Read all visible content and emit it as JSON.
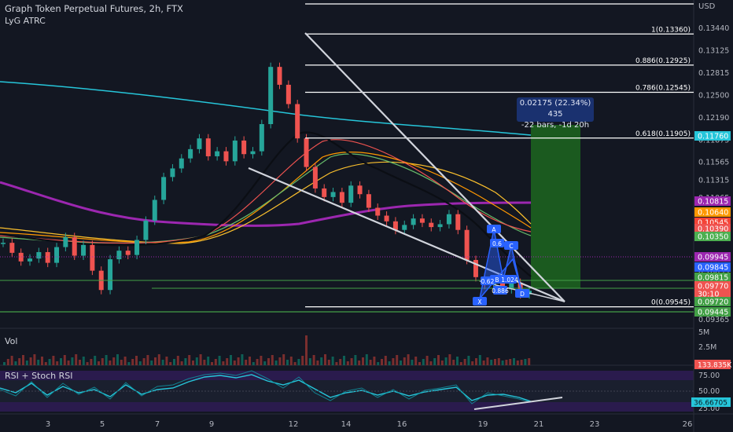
{
  "legend": {
    "title": "Graph Token Perpetual Futures, 2h, FTX",
    "indicator": "LyG ATRC"
  },
  "panes": {
    "volume_label": "Vol",
    "rsi_label": "RSI + Stoch RSI"
  },
  "currency": "USD",
  "measure_tooltip": {
    "line1": "0.02175 (22.34%) 435",
    "line2": "-22 bars, -1d 20h"
  },
  "colors": {
    "background": "#131722",
    "up": "#26a69a",
    "down": "#ef5350",
    "fib_line": "#ffffff",
    "target_box": "#1b5e20",
    "harmonic": "#2962ff",
    "rsi_band": "#2a1b4d",
    "rsi_line": "#26c6da"
  },
  "chart_data": {
    "type": "candlestick",
    "symbol": "Graph Token Perpetual Futures",
    "interval": "2h",
    "exchange": "FTX",
    "x_tick_labels": [
      "3",
      "5",
      "7",
      "9",
      "12",
      "14",
      "16",
      "19",
      "21",
      "23",
      "26"
    ],
    "price_axis_ticks": [
      "0.13440",
      "0.13125",
      "0.12815",
      "0.12500",
      "0.12190",
      "0.11875",
      "0.11565",
      "0.11315",
      "0.11065",
      "0.10035",
      "0.09365"
    ],
    "price_badges": [
      {
        "label": "0.11760",
        "color": "#26c6da"
      },
      {
        "label": "0.10815",
        "color": "#9c27b0"
      },
      {
        "label": "0.10640",
        "color": "#ff9800"
      },
      {
        "label": "0.10545",
        "color": "#f44336"
      },
      {
        "label": "0.10390",
        "color": "#ef5350"
      },
      {
        "label": "0.10350",
        "color": "#4caf50"
      },
      {
        "label": "0.09945",
        "color": "#9c27b0"
      },
      {
        "label": "0.09845",
        "color": "#2962ff"
      },
      {
        "label": "0.09815",
        "color": "#43a047"
      },
      {
        "label": "0.09770",
        "color": "#ef5350"
      },
      {
        "label": "30:10",
        "color": "#ef5350"
      },
      {
        "label": "0.09720",
        "color": "#43a047"
      },
      {
        "label": "0.09445",
        "color": "#43a047"
      }
    ],
    "fib_levels": [
      {
        "label": "1(0.13360)",
        "value": 0.1336
      },
      {
        "label": "0.886(0.12925)",
        "value": 0.12925
      },
      {
        "label": "0.786(0.12545)",
        "value": 0.12545
      },
      {
        "label": "0.618(0.11905)",
        "value": 0.11905
      },
      {
        "label": "0(0.09545)",
        "value": 0.09545
      }
    ],
    "harmonic_labels": [
      "X",
      "A",
      "B",
      "C",
      "D",
      "0.6",
      "0.62",
      "1.024",
      "0.886"
    ],
    "volume_axis_ticks": [
      "5M",
      "2.5M"
    ],
    "volume_badge": "133.835K",
    "rsi_axis_ticks": [
      "75.00",
      "50.00",
      "25.00"
    ],
    "rsi_badge": "36.66705",
    "price_path": [
      0.1044,
      0.103,
      0.1018,
      0.1022,
      0.1031,
      0.1016,
      0.1038,
      0.1052,
      0.1026,
      0.1041,
      0.1005,
      0.0978,
      0.1021,
      0.1033,
      0.1027,
      0.1048,
      0.1075,
      0.1104,
      0.1136,
      0.1148,
      0.1162,
      0.1175,
      0.119,
      0.1165,
      0.1172,
      0.1158,
      0.1187,
      0.1168,
      0.1172,
      0.121,
      0.129,
      0.1265,
      0.1238,
      0.119,
      0.115,
      0.112,
      0.1108,
      0.1115,
      0.11,
      0.1124,
      0.1112,
      0.1093,
      0.1082,
      0.1074,
      0.1062,
      0.1069,
      0.1078,
      0.1072,
      0.1066,
      0.107,
      0.1084,
      0.1062,
      0.102,
      0.0996,
      0.0985,
      0.099,
      0.0979,
      0.0988,
      0.0972,
      0.0977
    ]
  }
}
